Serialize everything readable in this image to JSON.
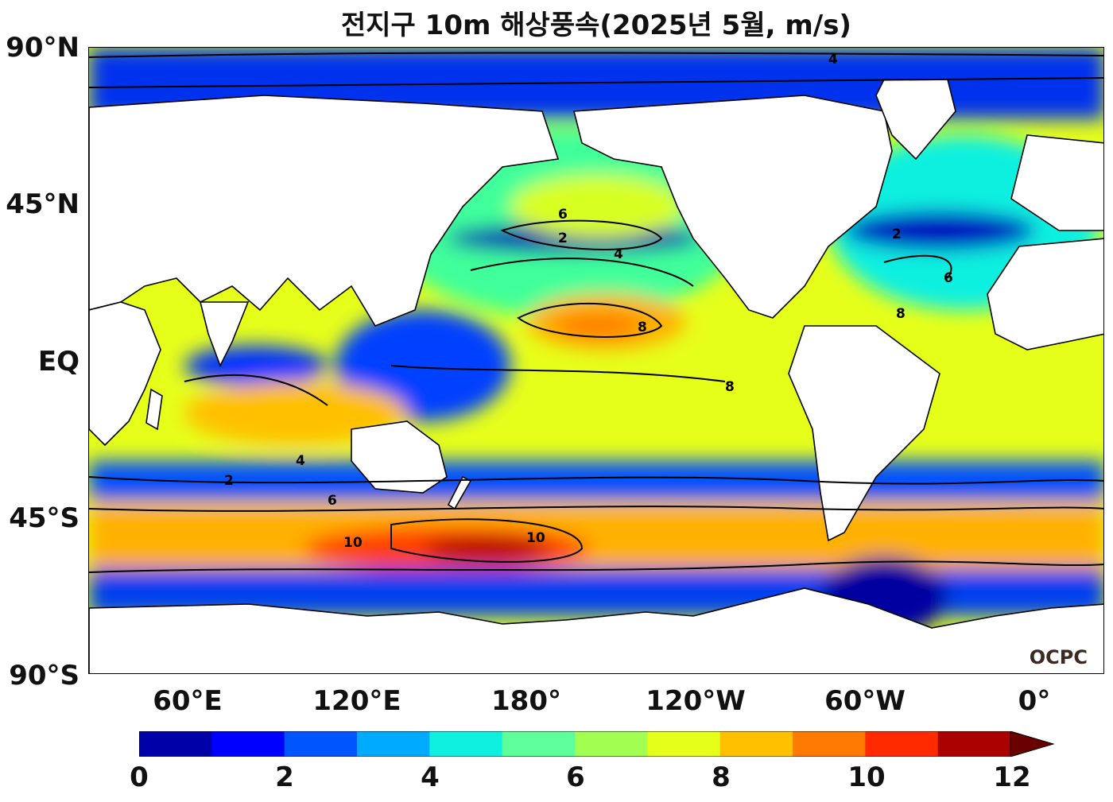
{
  "title": "전지구 10m 해상풍속(2025년 5월, m/s)",
  "lat_labels": [
    "90°N",
    "45°N",
    "EQ",
    "45°S",
    "90°S"
  ],
  "lon_labels": [
    "60°E",
    "120°E",
    "180°",
    "120°W",
    "60°W",
    "0°"
  ],
  "logo": "OCPC",
  "colorbar": {
    "ticks": [
      "0",
      "2",
      "4",
      "6",
      "8",
      "10",
      "12"
    ],
    "colors": [
      "#0000a8",
      "#0000ff",
      "#0055ff",
      "#00aaff",
      "#10f0e0",
      "#5cff9a",
      "#a0ff50",
      "#e6ff1a",
      "#ffc000",
      "#ff7a00",
      "#ff2a00",
      "#aa0000",
      "#6a0000"
    ]
  },
  "contour_labels": [
    "2",
    "4",
    "6",
    "8",
    "10"
  ]
}
